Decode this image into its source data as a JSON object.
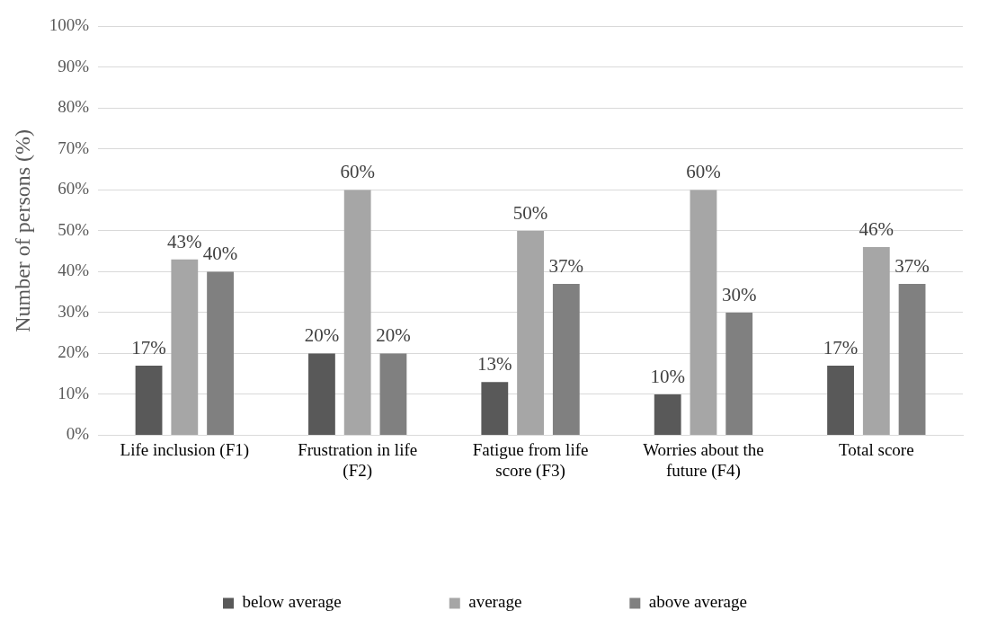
{
  "chart_data": {
    "type": "bar",
    "ylabel": "Number of persons (%)",
    "categories": [
      "Life inclusion (F1)",
      "Frustration in life (F2)",
      "Fatigue from life score (F3)",
      "Worries about the future (F4)",
      "Total score"
    ],
    "series": [
      {
        "name": "below average",
        "color": "#595959",
        "values": [
          17,
          20,
          13,
          10,
          17
        ],
        "value_labels": [
          "17%",
          "20%",
          "13%",
          "10%",
          "17%"
        ]
      },
      {
        "name": "average",
        "color": "#a6a6a6",
        "values": [
          43,
          60,
          50,
          60,
          46
        ],
        "value_labels": [
          "43%",
          "60%",
          "50%",
          "60%",
          "46%"
        ]
      },
      {
        "name": "above average",
        "color": "#808080",
        "values": [
          40,
          20,
          37,
          30,
          37
        ],
        "value_labels": [
          "40%",
          "20%",
          "37%",
          "30%",
          "37%"
        ]
      }
    ],
    "ylim": [
      0,
      100
    ],
    "yticks": [
      {
        "value": 0,
        "label": "0%"
      },
      {
        "value": 10,
        "label": "10%"
      },
      {
        "value": 20,
        "label": "20%"
      },
      {
        "value": 30,
        "label": "30%"
      },
      {
        "value": 40,
        "label": "40%"
      },
      {
        "value": 50,
        "label": "50%"
      },
      {
        "value": 60,
        "label": "60%"
      },
      {
        "value": 70,
        "label": "70%"
      },
      {
        "value": 80,
        "label": "80%"
      },
      {
        "value": 90,
        "label": "90%"
      },
      {
        "value": 100,
        "label": "100%"
      }
    ],
    "grid": "y",
    "legend": "bottom"
  }
}
